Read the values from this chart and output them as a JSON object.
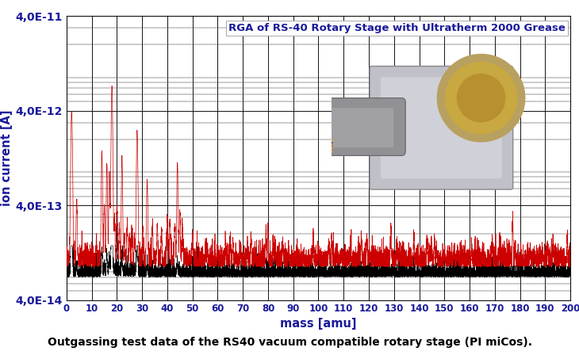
{
  "title_part1": "RGA of RS-40 Rotary Stage with ",
  "title_part2": "Ultratherm 2000 Grease",
  "xlabel": "mass [amu]",
  "ylabel": "ion current [A]",
  "caption": "Outgassing test data of the RS40 vacuum compatible rotary stage (PI miCos).",
  "xmin": 0,
  "xmax": 200,
  "ymin": 4e-14,
  "ymax": 4e-11,
  "xticks": [
    0,
    10,
    20,
    30,
    40,
    50,
    60,
    70,
    80,
    90,
    100,
    110,
    120,
    130,
    140,
    150,
    160,
    170,
    180,
    190,
    200
  ],
  "ytick_labels": [
    "4,0E-14",
    "4,0E-13",
    "4,0E-12",
    "4,0E-11"
  ],
  "ytick_values": [
    4e-14,
    4e-13,
    4e-12,
    4e-11
  ],
  "red_color": "#CC0000",
  "black_color": "#000000",
  "label_color": "#1a1a99",
  "bg_color": "#FFFFFF",
  "figsize": [
    7.3,
    4.48
  ],
  "dpi": 100,
  "peak_masses_red": [
    2,
    4,
    14,
    16,
    17,
    18,
    20,
    28,
    32,
    44
  ],
  "peak_heights_red": [
    3.8e-12,
    3.5e-13,
    7e-13,
    5e-13,
    4e-13,
    3.6e-12,
    1.5e-13,
    1.2e-12,
    3e-13,
    5e-13
  ],
  "peak_widths_red": [
    0.25,
    0.2,
    0.2,
    0.2,
    0.2,
    0.25,
    0.2,
    0.25,
    0.2,
    0.2
  ],
  "noise_baseline_red": 9e-14,
  "noise_baseline_black": 7e-14,
  "noise_scale_red": 1.5e-14,
  "noise_scale_black": 8e-15
}
